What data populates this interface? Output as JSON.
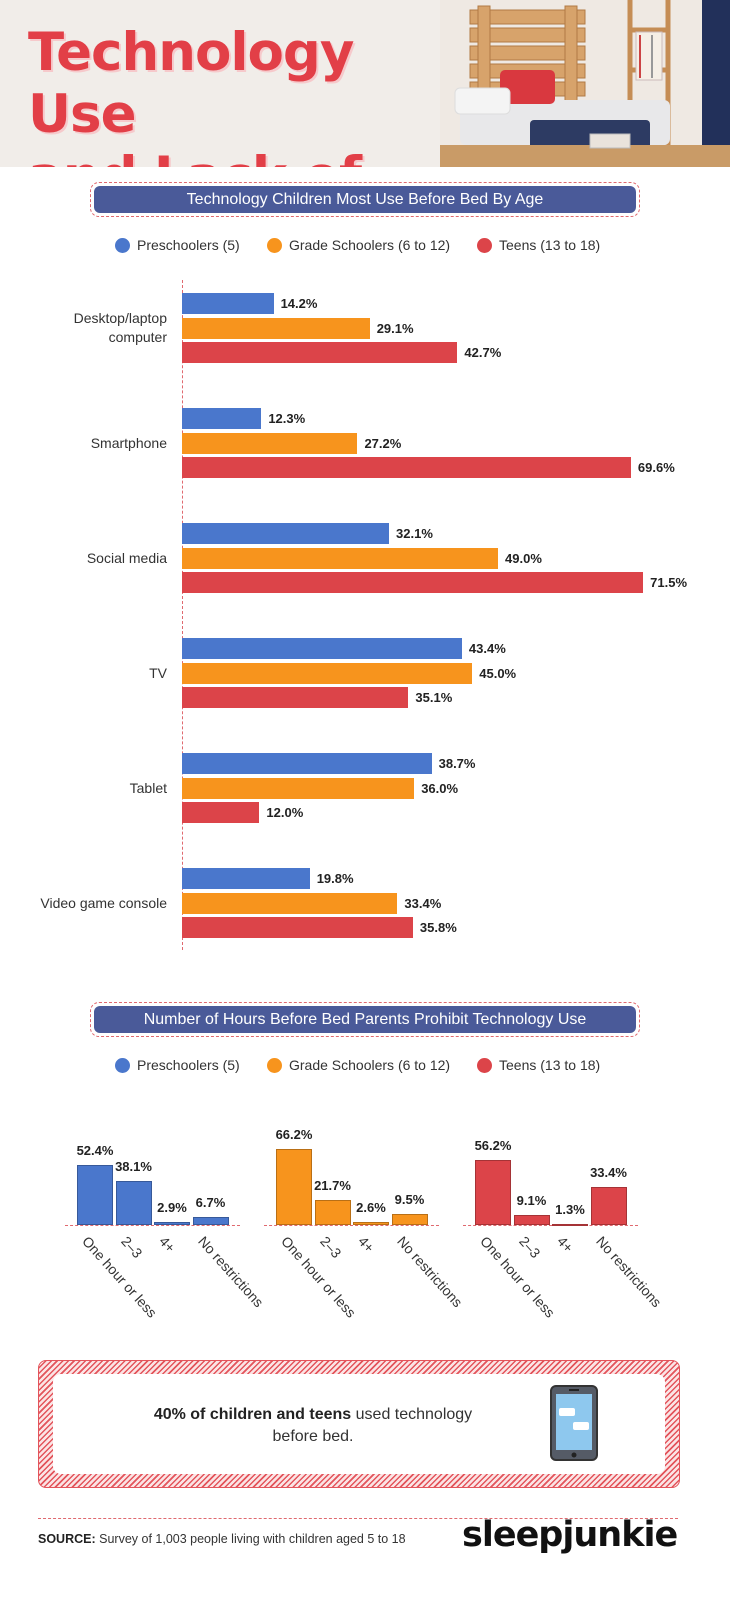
{
  "header": {
    "title_line1": "Technology Use",
    "title_line2": "and Lack of Sleep"
  },
  "legend": [
    {
      "label": "Preschoolers (5)",
      "color": "#4a77cc"
    },
    {
      "label": "Grade Schoolers (6 to 12)",
      "color": "#f7941d"
    },
    {
      "label": "Teens (13 to 18)",
      "color": "#dc4449"
    }
  ],
  "chart_data": [
    {
      "type": "bar",
      "orientation": "horizontal",
      "title": "Technology Children Most Use Before Bed By Age",
      "categories": [
        "Desktop/laptop computer",
        "Smartphone",
        "Social media",
        "TV",
        "Tablet",
        "Video game console"
      ],
      "series": [
        {
          "name": "Preschoolers (5)",
          "color": "#4a77cc",
          "values": [
            14.2,
            12.3,
            32.1,
            43.4,
            38.7,
            19.8
          ]
        },
        {
          "name": "Grade Schoolers (6 to 12)",
          "color": "#f7941d",
          "values": [
            29.1,
            27.2,
            49.0,
            45.0,
            36.0,
            33.4
          ]
        },
        {
          "name": "Teens (13 to 18)",
          "color": "#dc4449",
          "values": [
            42.7,
            69.6,
            71.5,
            35.1,
            12.0,
            35.8
          ]
        }
      ],
      "labels": [
        [
          "14.2%",
          "12.3%",
          "32.1%",
          "43.4%",
          "38.7%",
          "19.8%"
        ],
        [
          "29.1%",
          "27.2%",
          "49.0%",
          "45.0%",
          "36.0%",
          "33.4%"
        ],
        [
          "42.7%",
          "69.6%",
          "71.5%",
          "35.1%",
          "12.0%",
          "35.8%"
        ]
      ],
      "xlim": [
        0,
        100
      ]
    },
    {
      "type": "bar",
      "orientation": "vertical",
      "title": "Number of Hours Before Bed Parents Prohibit Technology Use",
      "categories": [
        "One hour or less",
        "2–3",
        "4+",
        "No restrictions"
      ],
      "series": [
        {
          "name": "Preschoolers (5)",
          "color": "#4a77cc",
          "values": [
            52.4,
            38.1,
            2.9,
            6.7
          ],
          "labels": [
            "52.4%",
            "38.1%",
            "2.9%",
            "6.7%"
          ]
        },
        {
          "name": "Grade Schoolers (6 to 12)",
          "color": "#f7941d",
          "values": [
            66.2,
            21.7,
            2.6,
            9.5
          ],
          "labels": [
            "66.2%",
            "21.7%",
            "2.6%",
            "9.5%"
          ]
        },
        {
          "name": "Teens (13 to 18)",
          "color": "#dc4449",
          "values": [
            56.2,
            9.1,
            1.3,
            33.4
          ],
          "labels": [
            "56.2%",
            "9.1%",
            "1.3%",
            "33.4%"
          ]
        }
      ],
      "ylim": [
        0,
        100
      ]
    }
  ],
  "callout": {
    "bold": "40% of children and teens",
    "rest": " used technology before bed."
  },
  "footer": {
    "source_label": "SOURCE:",
    "source_text": " Survey of 1,003 people living with children aged 5 to 18",
    "brand": "sleepjunkie"
  }
}
